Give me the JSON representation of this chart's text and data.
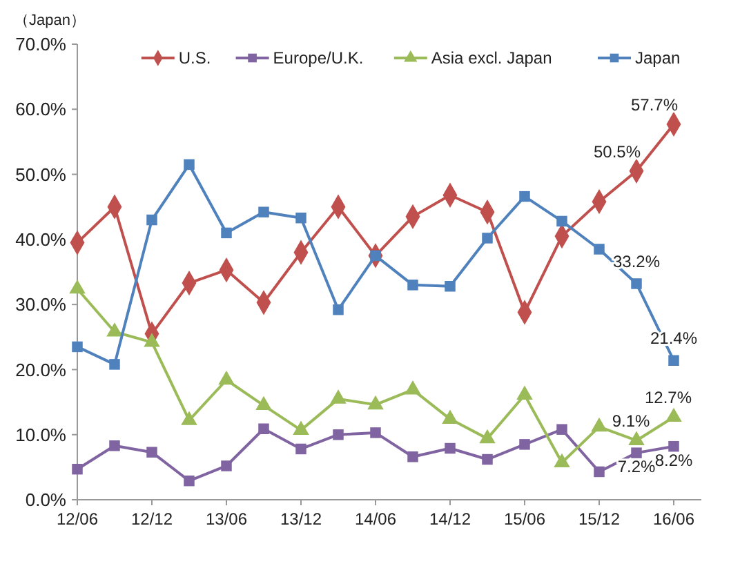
{
  "chart_data": {
    "type": "line",
    "ylabel": "（Japan）",
    "categories": [
      "12/06",
      null,
      "12/12",
      null,
      "13/06",
      null,
      "13/12",
      null,
      "14/06",
      null,
      "14/12",
      null,
      "15/06",
      null,
      "15/12",
      null,
      "16/06"
    ],
    "ylim": [
      0,
      70
    ],
    "yticks": [
      {
        "value": 0,
        "label": "0.0%"
      },
      {
        "value": 10,
        "label": "10.0%"
      },
      {
        "value": 20,
        "label": "20.0%"
      },
      {
        "value": 30,
        "label": "30.0%"
      },
      {
        "value": 40,
        "label": "40.0%"
      },
      {
        "value": 50,
        "label": "50.0%"
      },
      {
        "value": 60,
        "label": "60.0%"
      },
      {
        "value": 70,
        "label": "70.0%"
      }
    ],
    "grid": false,
    "legend": "top right",
    "line_style": "solid",
    "series": [
      {
        "name": "U.S.",
        "color": "#c0504d",
        "marker": "diamond",
        "values": [
          39.5,
          45,
          25.5,
          33.3,
          35.3,
          30.3,
          38,
          45,
          37.5,
          43.5,
          46.8,
          44.2,
          28.8,
          40.5,
          45.8,
          50.5,
          57.7
        ],
        "value_labels": [
          null,
          null,
          null,
          null,
          null,
          null,
          null,
          null,
          null,
          null,
          null,
          null,
          null,
          null,
          null,
          "50.5%",
          "57.7%"
        ]
      },
      {
        "name": "Europe/U.K.",
        "color": "#8064a2",
        "marker": "square",
        "values": [
          4.7,
          8.3,
          7.3,
          2.9,
          5.2,
          10.9,
          7.8,
          10,
          10.3,
          6.6,
          7.9,
          6.2,
          8.5,
          10.8,
          4.3,
          7.2,
          8.2
        ],
        "value_labels": [
          null,
          null,
          null,
          null,
          null,
          null,
          null,
          null,
          null,
          null,
          null,
          null,
          null,
          null,
          null,
          "7.2%",
          "8.2%"
        ]
      },
      {
        "name": "Asia excl. Japan",
        "color": "#9bbb59",
        "marker": "triangle",
        "values": [
          32.4,
          25.8,
          24.2,
          12.2,
          18.4,
          14.5,
          10.7,
          15.5,
          14.6,
          16.9,
          12.4,
          9.4,
          16.1,
          5.7,
          11.2,
          9.1,
          12.7
        ],
        "value_labels": [
          null,
          null,
          null,
          null,
          null,
          null,
          null,
          null,
          null,
          null,
          null,
          null,
          null,
          null,
          null,
          "9.1%",
          "12.7%"
        ]
      },
      {
        "name": "Japan",
        "color": "#4f81bd",
        "marker": "square",
        "values": [
          23.5,
          20.8,
          43,
          51.5,
          41,
          44.2,
          43.3,
          29.2,
          37.5,
          33,
          32.8,
          40.2,
          46.6,
          42.8,
          38.5,
          33.2,
          21.4
        ],
        "value_labels": [
          null,
          null,
          null,
          null,
          null,
          null,
          null,
          null,
          null,
          null,
          null,
          null,
          null,
          null,
          null,
          "33.2%",
          "21.4%"
        ]
      }
    ]
  }
}
